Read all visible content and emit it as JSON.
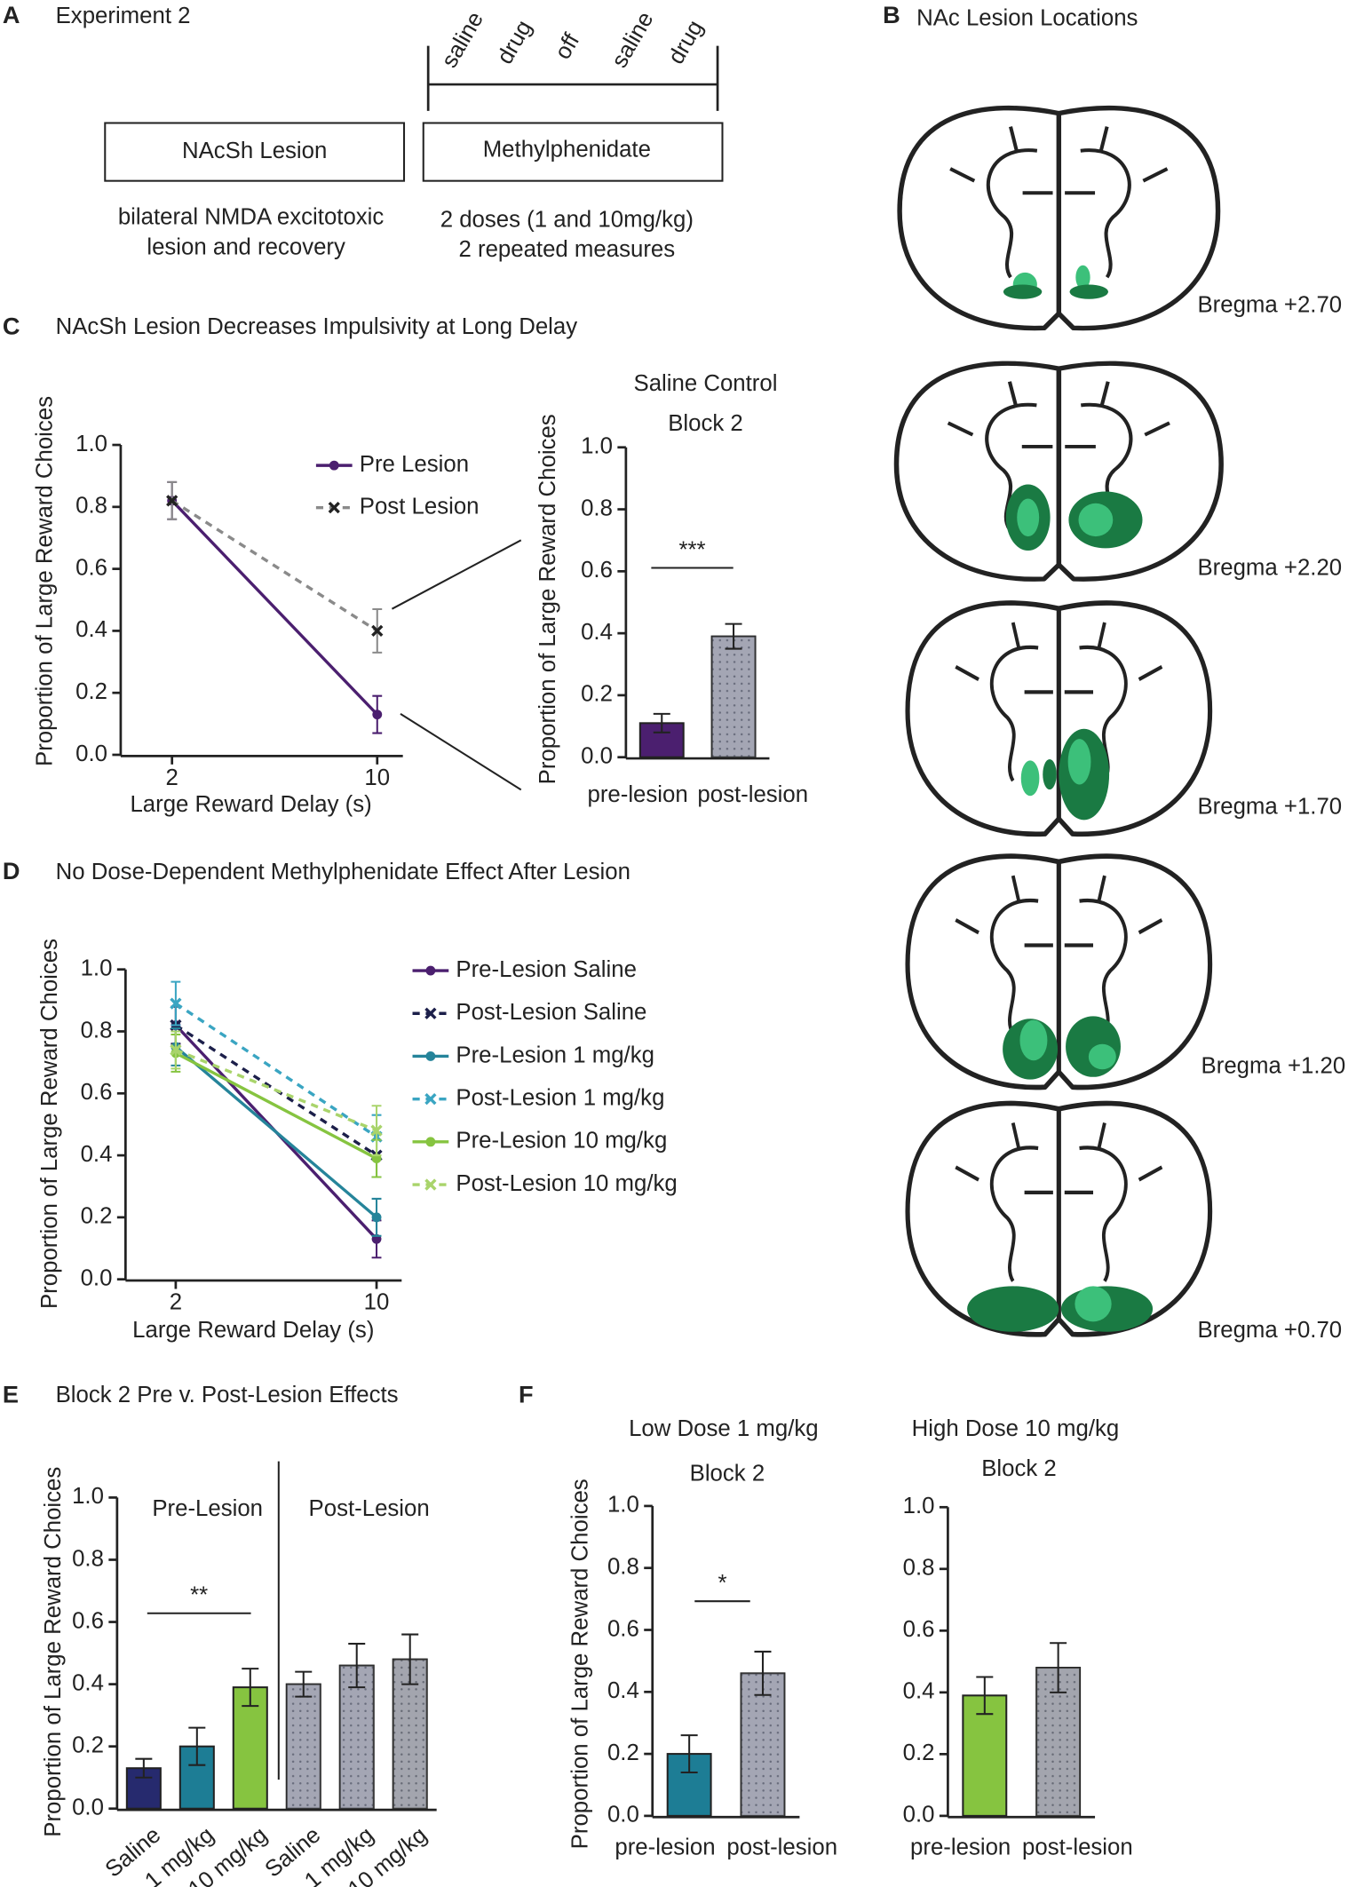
{
  "panel_letters": [
    "A",
    "B",
    "C",
    "D",
    "E",
    "F"
  ],
  "experiment": {
    "title": "Experiment 2",
    "timeline": [
      "saline",
      "drug",
      "off",
      "saline",
      "drug"
    ],
    "boxes": [
      "NAcSh Lesion",
      "Methylphenidate"
    ],
    "notes_left": [
      "bilateral NMDA excitotoxic",
      "lesion and recovery"
    ],
    "notes_right": [
      "2 doses (1 and 10mg/kg)",
      "2 repeated measures"
    ]
  },
  "lesion_map": {
    "title": "NAc Lesion Locations",
    "sections": [
      "Bregma +2.70",
      "Bregma +2.20",
      "Bregma +1.70",
      "Bregma +1.20",
      "Bregma +0.70"
    ]
  },
  "chart_data": [
    {
      "type": "line",
      "title": "NAcSh Lesion Decreases Impulsivity at Long Delay",
      "x": [
        2,
        10
      ],
      "xlim": [
        0,
        11
      ],
      "xticks": [
        2,
        10
      ],
      "xlabel": "Large Reward  Delay  (s)",
      "ylabel": "Proportion of  Large  Reward Choices",
      "ylim": [
        0,
        1
      ],
      "yticks": [
        {
          "value": 0,
          "label": "0.0"
        },
        0.2,
        0.4,
        0.6,
        0.8,
        {
          "value": 1,
          "label": "1.0"
        }
      ],
      "series": [
        {
          "name": "Pre Lesion",
          "color": "#4b1f6f",
          "linestyle": "solid",
          "marker": "circle",
          "values": [
            0.82,
            0.13
          ],
          "errors": [
            0.06,
            0.06
          ]
        },
        {
          "name": "Post Lesion",
          "color": "#8a8a8a",
          "linestyle": "dashed",
          "marker": "x",
          "values": [
            0.82,
            0.4
          ],
          "errors": [
            0.06,
            0.07
          ]
        }
      ]
    },
    {
      "type": "bar",
      "title": "Saline Control",
      "subtitle": "Block 2",
      "categories": [
        "pre-lesion",
        "post-lesion"
      ],
      "values": [
        0.11,
        0.39
      ],
      "errors": [
        0.03,
        0.04
      ],
      "colors": [
        "#4b1f6f",
        "#a4a6b4"
      ],
      "patterns": [
        "solid",
        "dots"
      ],
      "ylabel": "Proportion of  Large  Reward Choices",
      "ylim": [
        0,
        1
      ],
      "yticks": [
        {
          "value": 0,
          "label": "0.0"
        },
        0.2,
        0.4,
        0.6,
        0.8,
        {
          "value": 1,
          "label": "1.0"
        }
      ],
      "annotation": "***"
    },
    {
      "type": "line",
      "title": "No Dose-Dependent Methylphenidate Effect After Lesion",
      "x": [
        2,
        10
      ],
      "xlim": [
        0,
        11
      ],
      "xticks": [
        2,
        10
      ],
      "xlabel": "Large Reward  Delay  (s)",
      "ylabel": "Proportion of  Large  Reward Choices",
      "ylim": [
        0,
        1
      ],
      "yticks": [
        {
          "value": 0,
          "label": "0.0"
        },
        0.2,
        0.4,
        0.6,
        0.8,
        {
          "value": 1,
          "label": "1.0"
        }
      ],
      "series": [
        {
          "name": "Pre-Lesion Saline",
          "color": "#4b1f6f",
          "linestyle": "solid",
          "marker": "circle",
          "values": [
            0.82,
            0.13
          ],
          "errors": [
            0.06,
            0.06
          ]
        },
        {
          "name": "Post-Lesion Saline",
          "color": "#1c1f4a",
          "linestyle": "dashed",
          "marker": "x",
          "values": [
            0.82,
            0.4
          ],
          "errors": [
            0.06,
            0.07
          ]
        },
        {
          "name": "Pre-Lesion 1 mg/kg",
          "color": "#25849a",
          "linestyle": "solid",
          "marker": "circle",
          "values": [
            0.75,
            0.2
          ],
          "errors": [
            0.06,
            0.06
          ]
        },
        {
          "name": "Post-Lesion 1 mg/kg",
          "color": "#3aa5c2",
          "linestyle": "dashed",
          "marker": "x",
          "values": [
            0.89,
            0.46
          ],
          "errors": [
            0.07,
            0.07
          ]
        },
        {
          "name": "Pre-Lesion 10 mg/kg",
          "color": "#86c440",
          "linestyle": "solid",
          "marker": "circle",
          "values": [
            0.73,
            0.39
          ],
          "errors": [
            0.06,
            0.06
          ]
        },
        {
          "name": "Post-Lesion 10 mg/kg",
          "color": "#a9d46b",
          "linestyle": "dashed",
          "marker": "x",
          "values": [
            0.74,
            0.48
          ],
          "errors": [
            0.06,
            0.08
          ]
        }
      ]
    },
    {
      "type": "bar",
      "title": "Block 2 Pre v. Post-Lesion Effects",
      "categories": [
        "Saline",
        "1 mg/kg",
        "10 mg/kg",
        "Saline",
        "1 mg/kg",
        "10 mg/kg"
      ],
      "values": [
        0.13,
        0.2,
        0.39,
        0.4,
        0.46,
        0.48
      ],
      "errors": [
        0.03,
        0.06,
        0.06,
        0.04,
        0.07,
        0.08
      ],
      "colors": [
        "#262a6e",
        "#1d7d95",
        "#86c440",
        "#a4a6b4",
        "#a4a6b4",
        "#a0a39c"
      ],
      "patterns": [
        "solid",
        "solid",
        "solid",
        "dots",
        "dots",
        "dots"
      ],
      "groups": [
        "Pre-Lesion",
        "Post-Lesion"
      ],
      "ylabel": "Proportion of  Large  Reward Choices",
      "ylim": [
        0,
        1
      ],
      "yticks": [
        {
          "value": 0,
          "label": "0.0"
        },
        0.2,
        0.4,
        0.6,
        0.8,
        {
          "value": 1,
          "label": "1.0"
        }
      ],
      "annotation": "**"
    },
    {
      "type": "bar",
      "title": "Low Dose 1 mg/kg",
      "subtitle": "Block 2",
      "categories": [
        "pre-lesion",
        "post-lesion"
      ],
      "values": [
        0.2,
        0.46
      ],
      "errors": [
        0.06,
        0.07
      ],
      "colors": [
        "#1d7d95",
        "#a4a6b4"
      ],
      "patterns": [
        "solid",
        "dots"
      ],
      "ylabel": "Proportion of  Large  Reward Choices",
      "ylim": [
        0,
        1
      ],
      "yticks": [
        {
          "value": 0,
          "label": "0.0"
        },
        0.2,
        0.4,
        0.6,
        0.8,
        {
          "value": 1,
          "label": "1.0"
        }
      ],
      "annotation": "*"
    },
    {
      "type": "bar",
      "title": "High Dose 10 mg/kg",
      "subtitle": "Block 2",
      "categories": [
        "pre-lesion",
        "post-lesion"
      ],
      "values": [
        0.39,
        0.48
      ],
      "errors": [
        0.06,
        0.08
      ],
      "colors": [
        "#86c440",
        "#a0a39c"
      ],
      "patterns": [
        "solid",
        "dots"
      ],
      "ylim": [
        0,
        1
      ],
      "yticks": [
        {
          "value": 0,
          "label": "0.0"
        },
        0.2,
        0.4,
        0.6,
        0.8,
        {
          "value": 1,
          "label": "1.0"
        }
      ]
    }
  ]
}
